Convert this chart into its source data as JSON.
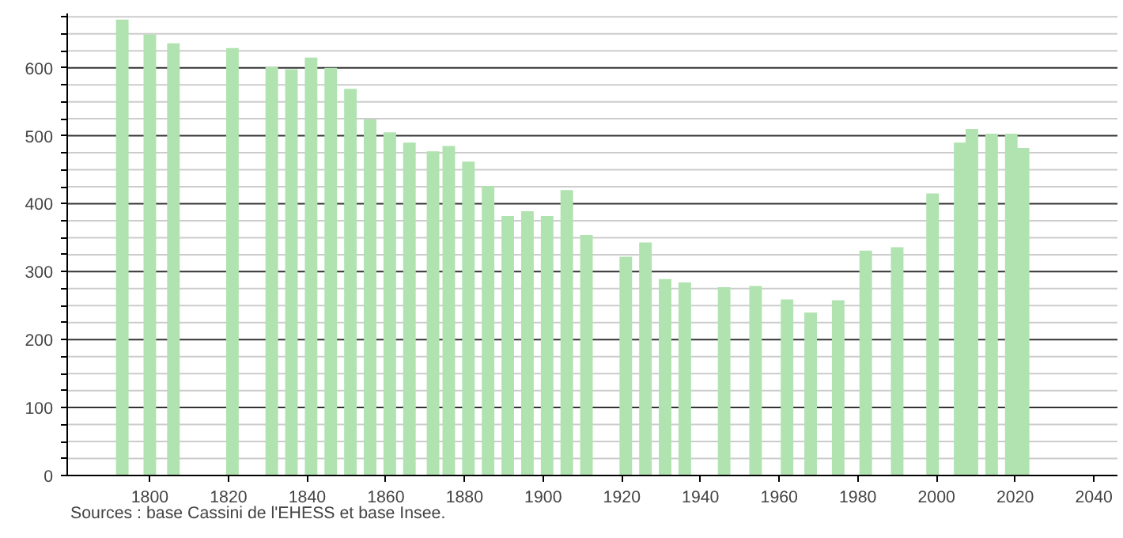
{
  "chart_data": {
    "type": "bar",
    "x": [
      1793,
      1800,
      1806,
      1821,
      1831,
      1836,
      1841,
      1846,
      1851,
      1856,
      1861,
      1866,
      1872,
      1876,
      1881,
      1886,
      1891,
      1896,
      1901,
      1906,
      1911,
      1921,
      1926,
      1931,
      1936,
      1946,
      1954,
      1962,
      1968,
      1975,
      1982,
      1990,
      1999,
      2006,
      2009,
      2014,
      2019,
      2022
    ],
    "values": [
      671,
      649,
      636,
      629,
      601,
      598,
      615,
      600,
      569,
      524,
      505,
      490,
      477,
      485,
      462,
      426,
      382,
      389,
      382,
      420,
      354,
      322,
      343,
      289,
      284,
      277,
      279,
      259,
      240,
      258,
      331,
      336,
      415,
      490,
      510,
      503,
      503,
      482
    ],
    "color": "#b0e3b0",
    "xlim": [
      1779,
      2046
    ],
    "xticks": [
      1800,
      1820,
      1840,
      1860,
      1880,
      1900,
      1920,
      1940,
      1960,
      1980,
      2000,
      2020,
      2040
    ],
    "ylim": [
      0,
      680
    ],
    "yticks": [
      0,
      {
        "value": 25,
        "label": null
      },
      {
        "value": 50,
        "label": null
      },
      {
        "value": 75,
        "label": null
      },
      100,
      {
        "value": 125,
        "label": null
      },
      {
        "value": 150,
        "label": null
      },
      {
        "value": 175,
        "label": null
      },
      200,
      {
        "value": 225,
        "label": null
      },
      {
        "value": 250,
        "label": null
      },
      {
        "value": 275,
        "label": null
      },
      300,
      {
        "value": 325,
        "label": null
      },
      {
        "value": 350,
        "label": null
      },
      {
        "value": 375,
        "label": null
      },
      400,
      {
        "value": 425,
        "label": null
      },
      {
        "value": 450,
        "label": null
      },
      {
        "value": 475,
        "label": null
      },
      500,
      {
        "value": 525,
        "label": null
      },
      {
        "value": 550,
        "label": null
      },
      {
        "value": 575,
        "label": null
      },
      600,
      {
        "value": 625,
        "label": null
      },
      {
        "value": 650,
        "label": null
      },
      {
        "value": 675,
        "label": null
      }
    ],
    "grid": "y",
    "annotations": [
      "Sources : base Cassini de l'EHESS et base Insee."
    ]
  }
}
